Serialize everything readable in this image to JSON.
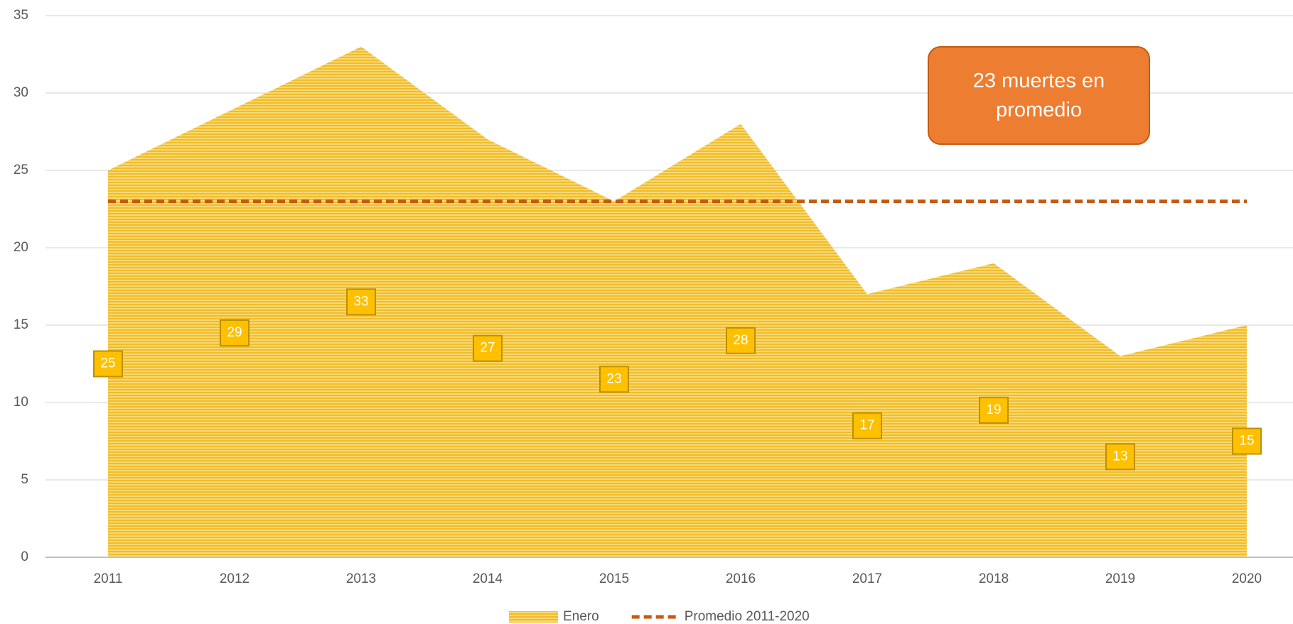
{
  "chart_data": {
    "type": "area",
    "categories": [
      "2011",
      "2012",
      "2013",
      "2014",
      "2015",
      "2016",
      "2017",
      "2018",
      "2019",
      "2020"
    ],
    "series": [
      {
        "name": "Enero",
        "color": "#f5c342",
        "values": [
          25,
          29,
          33,
          27,
          23,
          28,
          17,
          19,
          13,
          15
        ]
      },
      {
        "name": "Promedio 2011-2020",
        "color": "#c55a11",
        "type": "line",
        "dashed": true,
        "values": [
          23,
          23,
          23,
          23,
          23,
          23,
          23,
          23,
          23,
          23
        ]
      }
    ],
    "annotation": "23 muertes en promedio",
    "ylim": [
      0,
      35
    ],
    "yticks": [
      0,
      5,
      10,
      15,
      20,
      25,
      30,
      35
    ],
    "grid": true,
    "legend": "bottom"
  }
}
